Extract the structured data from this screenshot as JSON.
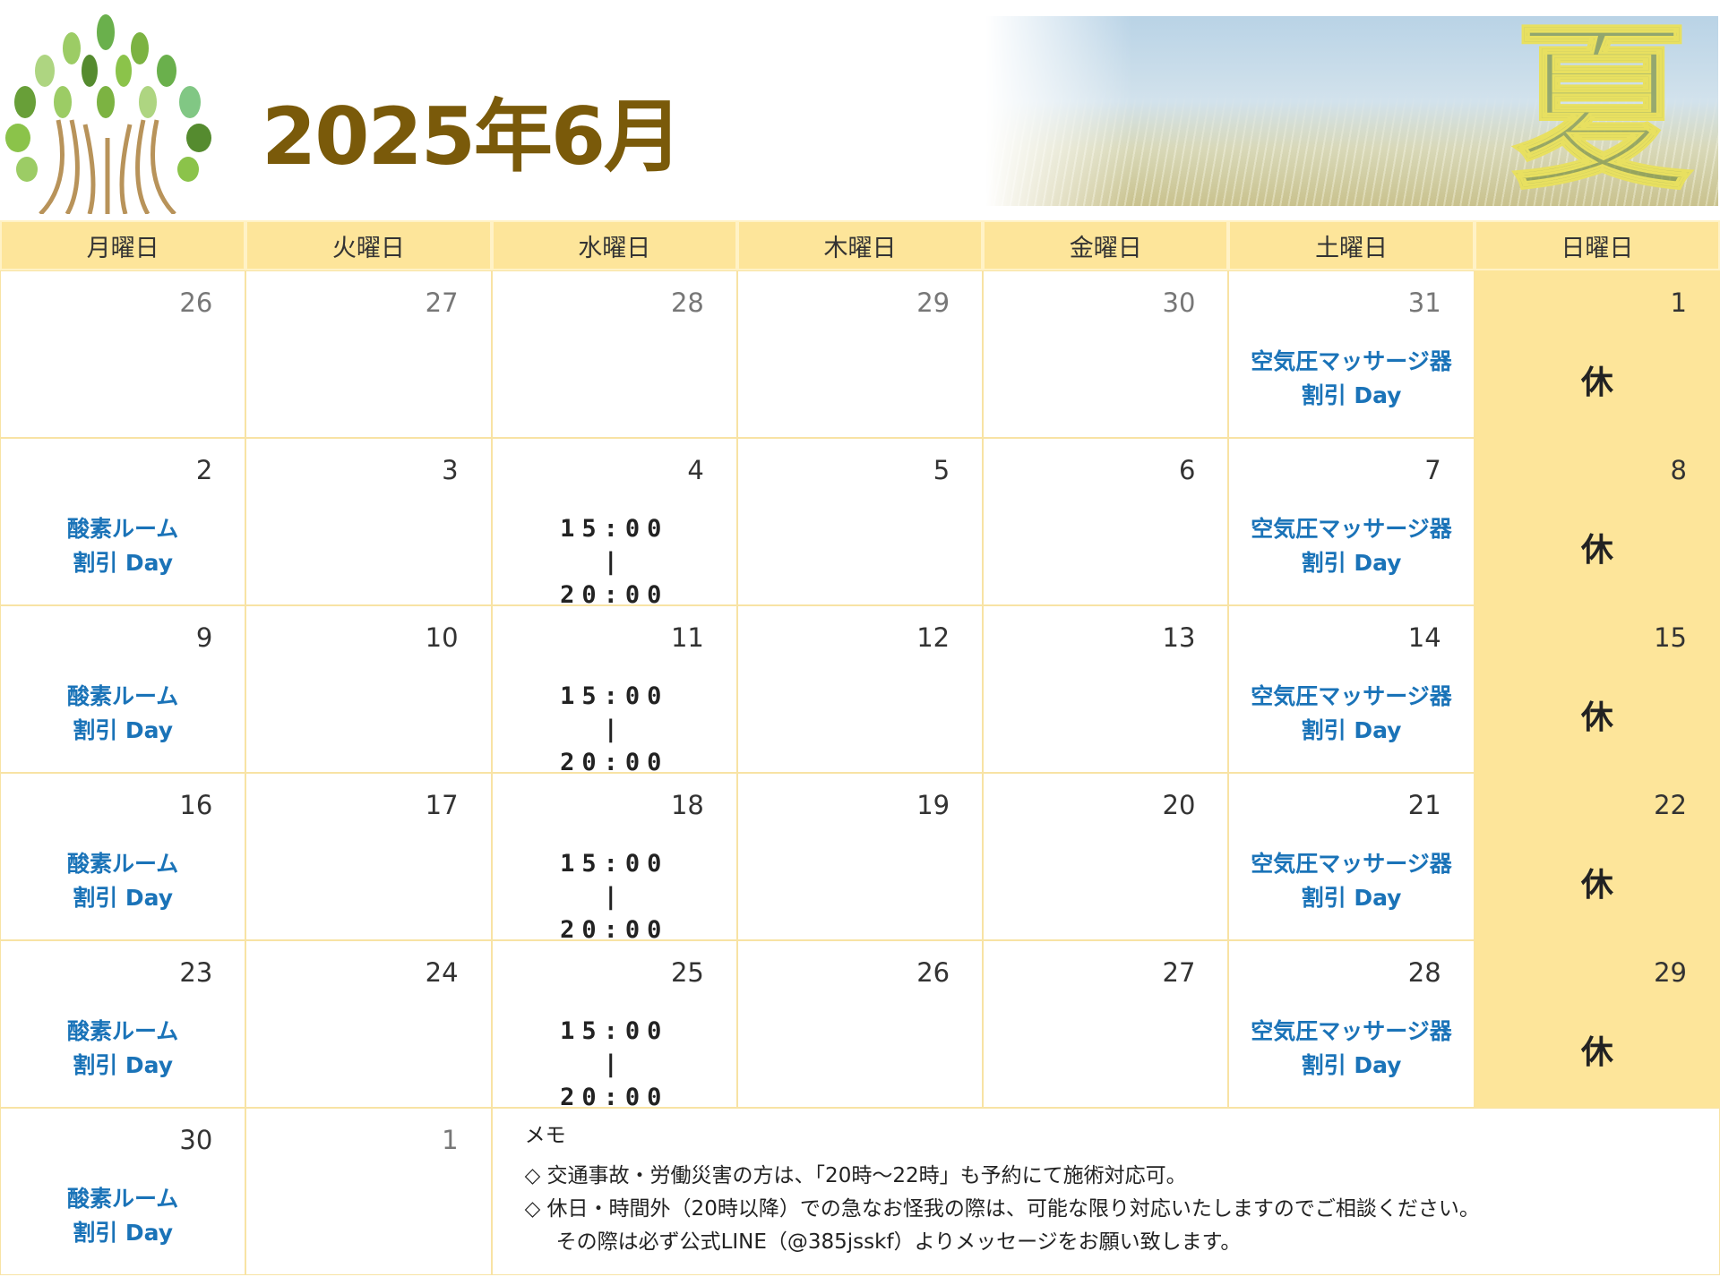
{
  "header": {
    "title": "2025年6月",
    "season_kanji": "夏"
  },
  "weekdays": [
    "月曜日",
    "火曜日",
    "水曜日",
    "木曜日",
    "金曜日",
    "土曜日",
    "日曜日"
  ],
  "events": {
    "oxygen": [
      "酸素ルーム",
      "割引 Day"
    ],
    "massage": [
      "空気圧マッサージ器",
      "割引 Day"
    ],
    "time": [
      "15:00",
      "|",
      "20:00"
    ],
    "closed": "休"
  },
  "colors": {
    "header_bg": "#fde59a",
    "event_text": "#1a73b8",
    "title": "#7a5a0a"
  },
  "weeks": [
    [
      "26",
      "27",
      "28",
      "29",
      "30",
      "31",
      "1"
    ],
    [
      "2",
      "3",
      "4",
      "5",
      "6",
      "7",
      "8"
    ],
    [
      "9",
      "10",
      "11",
      "12",
      "13",
      "14",
      "15"
    ],
    [
      "16",
      "17",
      "18",
      "19",
      "20",
      "21",
      "22"
    ],
    [
      "23",
      "24",
      "25",
      "26",
      "27",
      "28",
      "29"
    ],
    [
      "30",
      "1"
    ]
  ],
  "memo": {
    "title": "メモ",
    "lines": [
      "◇ 交通事故・労働災害の方は、「20時～22時」も予約にて施術対応可。",
      "◇ 休日・時間外（20時以降）での急なお怪我の際は、可能な限り対応いたしますのでご相談ください。",
      "その際は必ず公式LINE（@385jsskf）よりメッセージをお願い致します。"
    ]
  }
}
